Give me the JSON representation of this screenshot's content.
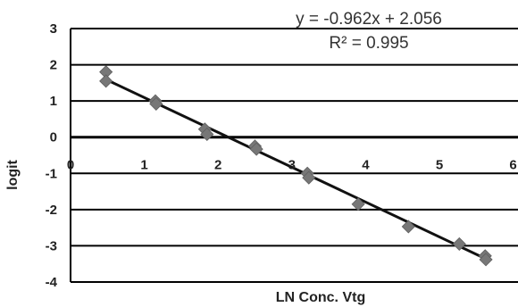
{
  "chart_data": {
    "type": "scatter",
    "xlabel": "LN Conc. Vtg",
    "ylabel": "logit",
    "xlim": [
      0,
      6
    ],
    "ylim": [
      -4,
      3
    ],
    "x_ticks": [
      "0",
      "1",
      "2",
      "3",
      "4",
      "5",
      "6"
    ],
    "y_ticks": [
      "3",
      "2",
      "1",
      "0",
      "-1",
      "-2",
      "-3",
      "-4"
    ],
    "grid": true,
    "points": [
      {
        "x": 0.48,
        "y": 1.8
      },
      {
        "x": 0.48,
        "y": 1.55
      },
      {
        "x": 1.15,
        "y": 1.0
      },
      {
        "x": 1.16,
        "y": 0.92
      },
      {
        "x": 1.82,
        "y": 0.22
      },
      {
        "x": 1.85,
        "y": 0.08
      },
      {
        "x": 2.5,
        "y": -0.25
      },
      {
        "x": 2.52,
        "y": -0.33
      },
      {
        "x": 3.21,
        "y": -1.0
      },
      {
        "x": 3.23,
        "y": -1.12
      },
      {
        "x": 3.9,
        "y": -1.85
      },
      {
        "x": 4.58,
        "y": -2.47
      },
      {
        "x": 5.27,
        "y": -2.95
      },
      {
        "x": 5.62,
        "y": -3.28
      },
      {
        "x": 5.63,
        "y": -3.38
      }
    ],
    "trendline": {
      "slope": -0.962,
      "intercept": 2.056,
      "x_range": [
        0.45,
        5.66
      ]
    },
    "annotations": [
      "y = -0.962x + 2.056",
      "R² = 0.995"
    ],
    "marker_color": "#777777",
    "line_color": "#111111"
  }
}
